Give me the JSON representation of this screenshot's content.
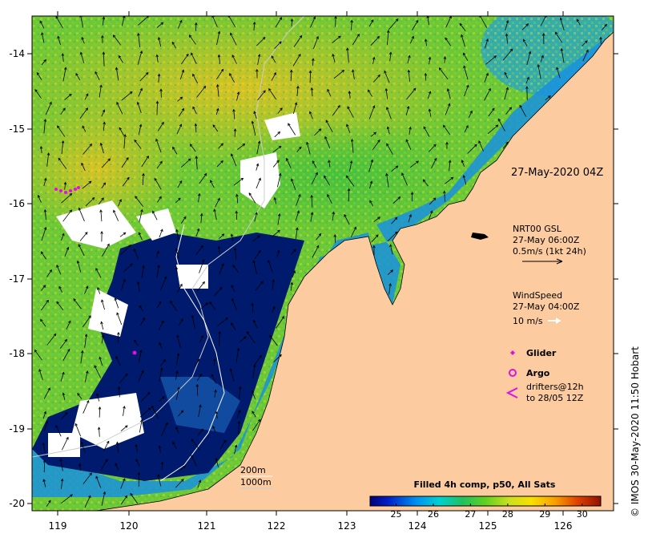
{
  "map": {
    "lon_ticks": [
      "119",
      "120",
      "121",
      "122",
      "123",
      "124",
      "125",
      "126"
    ],
    "lat_ticks": [
      "-14",
      "-15",
      "-16",
      "-17",
      "-18",
      "-19",
      "-20"
    ],
    "timestamp_label": "27-May-2020 04Z",
    "credit": "© IMOS 30-May-2020 11:50 Hobart"
  },
  "legend": {
    "current": {
      "title": "NRT00 GSL",
      "time": "27-May 06:00Z",
      "scale": "0.5m/s (1kt 24h)"
    },
    "wind": {
      "title": "WindSpeed",
      "time": "27-May 04:00Z",
      "scale": "10 m/s"
    },
    "glider_label": "Glider",
    "argo_label": "Argo",
    "drifters_line1": "drifters@12h",
    "drifters_line2": "to 28/05 12Z",
    "isobath_200": "200m",
    "isobath_1000": "1000m"
  },
  "colorbar": {
    "title": "Filled 4h comp, p50, All Sats",
    "ticks": [
      "25",
      "26",
      "27",
      "28",
      "29",
      "30"
    ],
    "min": 24.3,
    "max": 30.5
  },
  "colors": {
    "land": "#fccca0",
    "ocean_cold": "#001a6e",
    "glider": "#e010e0",
    "arrow": "#000000",
    "wind_arrow": "#ffffff"
  }
}
